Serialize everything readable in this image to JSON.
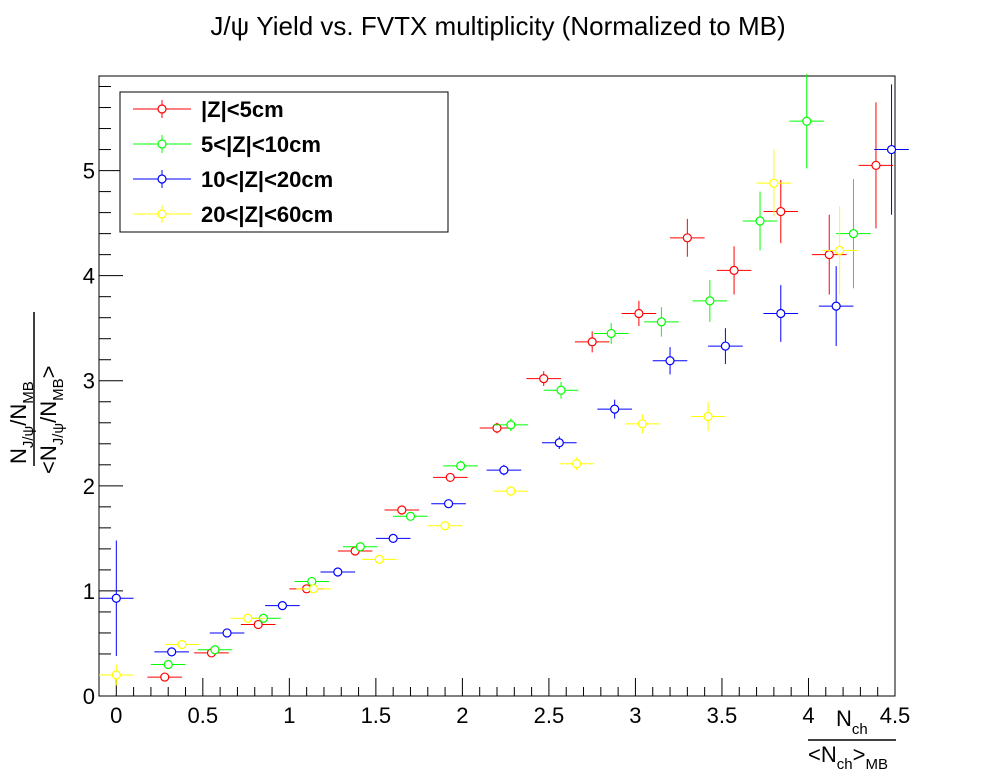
{
  "chart_data": {
    "type": "scatter",
    "title": "J/ψ Yield vs. FVTX multiplicity (Normalized to MB)",
    "xlabel": {
      "numerator_main": "N",
      "numerator_sub": "ch",
      "denominator_pre": "<N",
      "denominator_sub1": "ch",
      "denominator_post": ">",
      "denominator_sub2": "MB"
    },
    "ylabel": {
      "numerator_main": "N",
      "numerator_sub": "J/ψ",
      "numerator_slash": "/N",
      "numerator_sub2": "MB",
      "denominator_pre": "<N",
      "denominator_sub1": "J/ψ",
      "denominator_mid": "/N",
      "denominator_sub2": "MB",
      "denominator_post": ">"
    },
    "xlim": [
      -0.1,
      4.5
    ],
    "ylim": [
      0,
      5.9
    ],
    "xticks": [
      "0",
      "0.5",
      "1",
      "1.5",
      "2",
      "2.5",
      "3",
      "3.5",
      "4",
      "4.5"
    ],
    "xtick_values": [
      0,
      0.5,
      1,
      1.5,
      2,
      2.5,
      3,
      3.5,
      4,
      4.5
    ],
    "yticks": [
      "0",
      "1",
      "2",
      "3",
      "4",
      "5"
    ],
    "ytick_values": [
      0,
      1,
      2,
      3,
      4,
      5
    ],
    "grid": false,
    "legend_position": "top-left",
    "series": [
      {
        "name": "|Z|<5cm",
        "color": "#ff0000",
        "points": [
          {
            "x": 0.28,
            "y": 0.18,
            "xerr": 0.1,
            "yerr": 0.03
          },
          {
            "x": 0.55,
            "y": 0.41,
            "xerr": 0.1,
            "yerr": 0.03
          },
          {
            "x": 0.82,
            "y": 0.68,
            "xerr": 0.1,
            "yerr": 0.03
          },
          {
            "x": 1.1,
            "y": 1.02,
            "xerr": 0.1,
            "yerr": 0.04
          },
          {
            "x": 1.38,
            "y": 1.38,
            "xerr": 0.1,
            "yerr": 0.04
          },
          {
            "x": 1.65,
            "y": 1.77,
            "xerr": 0.1,
            "yerr": 0.04
          },
          {
            "x": 1.93,
            "y": 2.08,
            "xerr": 0.1,
            "yerr": 0.04
          },
          {
            "x": 2.2,
            "y": 2.55,
            "xerr": 0.1,
            "yerr": 0.05
          },
          {
            "x": 2.47,
            "y": 3.02,
            "xerr": 0.1,
            "yerr": 0.07
          },
          {
            "x": 2.75,
            "y": 3.37,
            "xerr": 0.1,
            "yerr": 0.1
          },
          {
            "x": 3.02,
            "y": 3.64,
            "xerr": 0.1,
            "yerr": 0.12
          },
          {
            "x": 3.3,
            "y": 4.36,
            "xerr": 0.1,
            "yerr": 0.18
          },
          {
            "x": 3.57,
            "y": 4.05,
            "xerr": 0.1,
            "yerr": 0.23
          },
          {
            "x": 3.84,
            "y": 4.61,
            "xerr": 0.1,
            "yerr": 0.3
          },
          {
            "x": 4.12,
            "y": 4.2,
            "xerr": 0.1,
            "yerr": 0.38
          },
          {
            "x": 4.39,
            "y": 5.05,
            "xerr": 0.1,
            "yerr": 0.6
          }
        ]
      },
      {
        "name": "5<|Z|<10cm",
        "color": "#00ff00",
        "points": [
          {
            "x": 0.3,
            "y": 0.3,
            "xerr": 0.1,
            "yerr": 0.03
          },
          {
            "x": 0.57,
            "y": 0.44,
            "xerr": 0.1,
            "yerr": 0.03
          },
          {
            "x": 0.85,
            "y": 0.74,
            "xerr": 0.1,
            "yerr": 0.03
          },
          {
            "x": 1.13,
            "y": 1.09,
            "xerr": 0.1,
            "yerr": 0.04
          },
          {
            "x": 1.41,
            "y": 1.42,
            "xerr": 0.1,
            "yerr": 0.04
          },
          {
            "x": 1.7,
            "y": 1.71,
            "xerr": 0.1,
            "yerr": 0.04
          },
          {
            "x": 1.99,
            "y": 2.19,
            "xerr": 0.1,
            "yerr": 0.05
          },
          {
            "x": 2.28,
            "y": 2.58,
            "xerr": 0.1,
            "yerr": 0.06
          },
          {
            "x": 2.57,
            "y": 2.91,
            "xerr": 0.1,
            "yerr": 0.08
          },
          {
            "x": 2.86,
            "y": 3.45,
            "xerr": 0.1,
            "yerr": 0.1
          },
          {
            "x": 3.15,
            "y": 3.56,
            "xerr": 0.1,
            "yerr": 0.14
          },
          {
            "x": 3.43,
            "y": 3.76,
            "xerr": 0.1,
            "yerr": 0.2
          },
          {
            "x": 3.72,
            "y": 4.52,
            "xerr": 0.1,
            "yerr": 0.28
          },
          {
            "x": 3.99,
            "y": 5.47,
            "xerr": 0.1,
            "yerr": 0.45
          },
          {
            "x": 4.26,
            "y": 4.4,
            "xerr": 0.1,
            "yerr": 0.52
          }
        ]
      },
      {
        "name": "10<|Z|<20cm",
        "color": "#0000ff",
        "points": [
          {
            "x": 0.0,
            "y": 0.93,
            "xerr": 0.1,
            "yerr": 0.55
          },
          {
            "x": 0.32,
            "y": 0.42,
            "xerr": 0.1,
            "yerr": 0.03
          },
          {
            "x": 0.64,
            "y": 0.6,
            "xerr": 0.1,
            "yerr": 0.03
          },
          {
            "x": 0.96,
            "y": 0.86,
            "xerr": 0.1,
            "yerr": 0.03
          },
          {
            "x": 1.28,
            "y": 1.18,
            "xerr": 0.1,
            "yerr": 0.04
          },
          {
            "x": 1.6,
            "y": 1.5,
            "xerr": 0.1,
            "yerr": 0.04
          },
          {
            "x": 1.92,
            "y": 1.83,
            "xerr": 0.1,
            "yerr": 0.04
          },
          {
            "x": 2.24,
            "y": 2.15,
            "xerr": 0.1,
            "yerr": 0.05
          },
          {
            "x": 2.56,
            "y": 2.41,
            "xerr": 0.1,
            "yerr": 0.06
          },
          {
            "x": 2.88,
            "y": 2.73,
            "xerr": 0.1,
            "yerr": 0.09
          },
          {
            "x": 3.2,
            "y": 3.19,
            "xerr": 0.1,
            "yerr": 0.13
          },
          {
            "x": 3.52,
            "y": 3.33,
            "xerr": 0.1,
            "yerr": 0.17
          },
          {
            "x": 3.84,
            "y": 3.64,
            "xerr": 0.1,
            "yerr": 0.27
          },
          {
            "x": 4.16,
            "y": 3.71,
            "xerr": 0.1,
            "yerr": 0.38
          },
          {
            "x": 4.48,
            "y": 5.2,
            "xerr": 0.1,
            "yerr": 0.62
          }
        ]
      },
      {
        "name": "20<|Z|<60cm",
        "color": "#ffff00",
        "points": [
          {
            "x": 0.0,
            "y": 0.2,
            "xerr": 0.1,
            "yerr": 0.1
          },
          {
            "x": 0.38,
            "y": 0.49,
            "xerr": 0.1,
            "yerr": 0.03
          },
          {
            "x": 0.76,
            "y": 0.74,
            "xerr": 0.1,
            "yerr": 0.03
          },
          {
            "x": 1.14,
            "y": 1.02,
            "xerr": 0.1,
            "yerr": 0.04
          },
          {
            "x": 1.52,
            "y": 1.3,
            "xerr": 0.1,
            "yerr": 0.04
          },
          {
            "x": 1.9,
            "y": 1.62,
            "xerr": 0.1,
            "yerr": 0.04
          },
          {
            "x": 2.28,
            "y": 1.95,
            "xerr": 0.1,
            "yerr": 0.05
          },
          {
            "x": 2.66,
            "y": 2.21,
            "xerr": 0.1,
            "yerr": 0.06
          },
          {
            "x": 3.04,
            "y": 2.59,
            "xerr": 0.1,
            "yerr": 0.09
          },
          {
            "x": 3.42,
            "y": 2.66,
            "xerr": 0.1,
            "yerr": 0.14
          },
          {
            "x": 3.8,
            "y": 4.88,
            "xerr": 0.1,
            "yerr": 0.32
          },
          {
            "x": 4.18,
            "y": 4.24,
            "xerr": 0.1,
            "yerr": 0.42
          }
        ]
      }
    ]
  }
}
